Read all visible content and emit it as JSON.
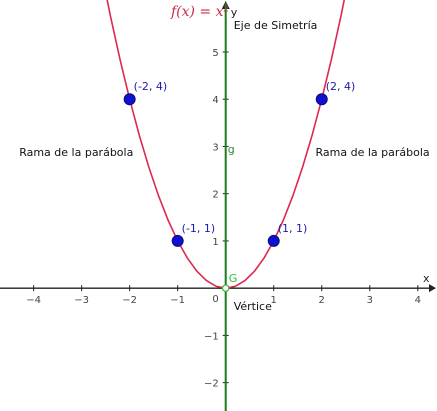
{
  "chart_data": {
    "type": "line",
    "title": "",
    "function_label": "f(x) = x²",
    "xlabel": "x",
    "ylabel": "y",
    "xlim": [
      -4.7,
      4.4
    ],
    "ylim": [
      -2.6,
      6.1
    ],
    "x_ticks": [
      -4,
      -3,
      -2,
      -1,
      1,
      2,
      3,
      4
    ],
    "y_ticks": [
      -2,
      -1,
      1,
      2,
      3,
      4,
      5
    ],
    "x_tick_labels": [
      "−4",
      "−3",
      "−2",
      "−1",
      "1",
      "2",
      "3",
      "4"
    ],
    "y_tick_labels": [
      "−2",
      "−1",
      "1",
      "2",
      "3",
      "4",
      "5"
    ],
    "origin_label": "0",
    "grid": false,
    "curve_color": "#e0284f",
    "axis_of_symmetry_color": "#1e7b1e",
    "point_color": "#1010d0",
    "series": [
      {
        "name": "f(x) = x²",
        "x": [
          -2.6,
          -2.4,
          -2.2,
          -2,
          -1.8,
          -1.6,
          -1.4,
          -1.2,
          -1,
          -0.8,
          -0.6,
          -0.4,
          -0.2,
          0,
          0.2,
          0.4,
          0.6,
          0.8,
          1,
          1.2,
          1.4,
          1.6,
          1.8,
          2,
          2.2,
          2.4,
          2.6
        ],
        "y": [
          6.76,
          5.76,
          4.84,
          4,
          3.24,
          2.56,
          1.96,
          1.44,
          1,
          0.64,
          0.36,
          0.16,
          0.04,
          0,
          0.04,
          0.16,
          0.36,
          0.64,
          1,
          1.44,
          1.96,
          2.56,
          3.24,
          4,
          4.84,
          5.76,
          6.76
        ]
      }
    ],
    "points": [
      {
        "x": -2,
        "y": 4,
        "label": "(-2, 4)"
      },
      {
        "x": -1,
        "y": 1,
        "label": "(-1, 1)"
      },
      {
        "x": 1,
        "y": 1,
        "label": "(1, 1)"
      },
      {
        "x": 2,
        "y": 4,
        "label": "(2, 4)"
      }
    ],
    "vertex": {
      "x": 0,
      "y": 0,
      "label": "G",
      "caption": "Vértice"
    },
    "axis_of_symmetry": {
      "x": 0,
      "label": "Eje de Simetría",
      "line_label": "g"
    },
    "branch_labels": [
      "Rama de la parábola",
      "Rama de la parábola"
    ]
  }
}
